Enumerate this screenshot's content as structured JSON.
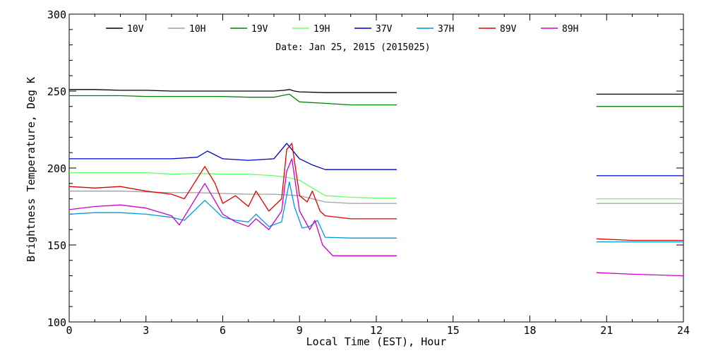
{
  "chart_data": {
    "type": "line",
    "subtitle": "Date: Jan 25, 2015 (2015025)",
    "xlabel": "Local Time (EST), Hour",
    "ylabel": "Brightness Temperature, Deg K",
    "xlim": [
      0,
      24
    ],
    "ylim": [
      100,
      300
    ],
    "xticks": [
      "0",
      "3",
      "6",
      "9",
      "12",
      "15",
      "18",
      "21",
      "24"
    ],
    "yticks": [
      "100",
      "150",
      "200",
      "250",
      "300"
    ],
    "grid": false,
    "legend_position": "top",
    "series": [
      {
        "name": "10V",
        "color": "#000000",
        "x": [
          0,
          1,
          2,
          3,
          4,
          5,
          6,
          7,
          8,
          8.4,
          8.6,
          8.8,
          9,
          10,
          11,
          12,
          12.8,
          20.6,
          22,
          24
        ],
        "y": [
          251,
          251,
          250.5,
          250.5,
          250,
          250,
          250,
          250,
          250,
          250.5,
          251,
          250,
          249.5,
          249,
          249,
          249,
          249,
          248,
          248,
          248
        ]
      },
      {
        "name": "10H",
        "color": "#a0a0a0",
        "x": [
          0,
          1,
          2,
          3,
          4,
          5,
          6,
          7,
          8,
          9,
          9.5,
          10,
          11,
          12,
          12.8,
          20.6,
          22,
          24
        ],
        "y": [
          185,
          185,
          185,
          184.5,
          184,
          184,
          183.5,
          183,
          183,
          182,
          180,
          178,
          177,
          177,
          177,
          177,
          177,
          177
        ]
      },
      {
        "name": "19V",
        "color": "#008000",
        "x": [
          0,
          1,
          2,
          3,
          4,
          5,
          6,
          7,
          8,
          8.3,
          8.6,
          9,
          10,
          11,
          12,
          12.8,
          20.6,
          22,
          24
        ],
        "y": [
          247,
          247,
          247,
          246.5,
          246.5,
          246.5,
          246.5,
          246,
          246,
          247,
          248,
          243,
          242,
          241,
          241,
          241,
          240,
          240,
          240
        ]
      },
      {
        "name": "19H",
        "color": "#66ff66",
        "x": [
          0,
          1,
          2,
          3,
          4,
          5,
          6,
          7,
          8,
          8.5,
          9,
          9.5,
          10,
          11,
          12,
          12.8,
          20.6,
          22,
          24
        ],
        "y": [
          197,
          197,
          197,
          197,
          196,
          196.5,
          196,
          196,
          195,
          194,
          192,
          187,
          182,
          181,
          180.5,
          180.5,
          180,
          180,
          180
        ]
      },
      {
        "name": "37V",
        "color": "#0000cc",
        "x": [
          0,
          1,
          2,
          3,
          4,
          5,
          5.4,
          6,
          7,
          8,
          8.5,
          8.7,
          9,
          9.5,
          10,
          11,
          12,
          12.8,
          20.6,
          22,
          24
        ],
        "y": [
          206,
          206,
          206,
          206,
          206,
          207,
          211,
          206,
          205,
          206,
          216,
          212,
          206,
          202,
          199,
          199,
          199,
          199,
          195,
          195,
          195
        ]
      },
      {
        "name": "37H",
        "color": "#0099dd",
        "x": [
          0,
          1,
          2,
          3,
          4,
          4.5,
          5.3,
          6,
          6.5,
          7,
          7.3,
          7.8,
          8.3,
          8.6,
          8.8,
          9.1,
          9.4,
          9.7,
          10,
          11,
          12,
          12.8,
          20.6,
          22,
          24
        ],
        "y": [
          170,
          171,
          171,
          170,
          168,
          166,
          179,
          168,
          166,
          165,
          170,
          162,
          165,
          191,
          175,
          161,
          162,
          166,
          155,
          154.5,
          154.5,
          154.5,
          152,
          152,
          152
        ]
      },
      {
        "name": "89V",
        "color": "#dd0000",
        "x": [
          0,
          1,
          2,
          3,
          4,
          4.5,
          5.3,
          5.7,
          6,
          6.5,
          7,
          7.3,
          7.8,
          8.3,
          8.5,
          8.7,
          9,
          9.3,
          9.5,
          9.8,
          10,
          11,
          12,
          12.8,
          20.6,
          22,
          24
        ],
        "y": [
          188,
          187,
          188,
          185,
          183,
          180,
          201,
          190,
          177,
          182,
          175,
          185,
          172,
          180,
          212,
          216,
          182,
          178,
          185,
          172,
          169,
          167,
          167,
          167,
          154,
          153,
          153
        ]
      },
      {
        "name": "89H",
        "color": "#cc00cc",
        "x": [
          0,
          1,
          2,
          3,
          4,
          4.3,
          5.3,
          6,
          6.5,
          7,
          7.3,
          7.8,
          8.3,
          8.5,
          8.7,
          9,
          9.4,
          9.6,
          9.9,
          10.3,
          11,
          12,
          12.8,
          20.6,
          22,
          24
        ],
        "y": [
          173,
          175,
          176,
          174,
          169,
          163,
          190,
          170,
          165,
          162,
          167,
          160,
          172,
          198,
          206,
          172,
          160,
          166,
          150,
          143,
          143,
          143,
          143,
          132,
          131,
          130
        ]
      }
    ]
  }
}
